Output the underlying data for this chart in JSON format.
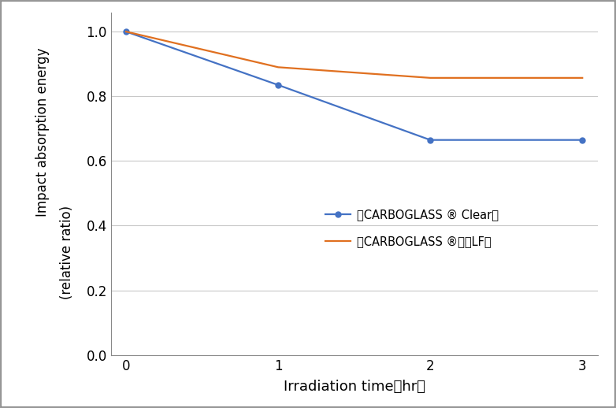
{
  "x": [
    0,
    1,
    2,
    3
  ],
  "series": [
    {
      "label": "「CARBOGLASS ® Clear」",
      "y": [
        1.0,
        0.835,
        0.665,
        0.665
      ],
      "color": "#4472C4",
      "marker": "o",
      "markersize": 5,
      "linewidth": 1.6
    },
    {
      "label": "「CARBOGLASS ®　　LF」",
      "y": [
        1.0,
        0.89,
        0.857,
        0.857
      ],
      "color": "#E07020",
      "marker": null,
      "markersize": 0,
      "linewidth": 1.6
    }
  ],
  "xlabel": "Irradiation time［hr］",
  "ylabel_top": "Impact absorption energy",
  "ylabel_bottom": "(relative ratio)",
  "xlim": [
    -0.1,
    3.1
  ],
  "ylim": [
    0,
    1.06
  ],
  "yticks": [
    0,
    0.2,
    0.4,
    0.6,
    0.8,
    1.0
  ],
  "xticks": [
    0,
    1,
    2,
    3
  ],
  "grid_color": "#C8C8C8",
  "background_color": "#FFFFFF",
  "xlabel_fontsize": 13,
  "ylabel_fontsize": 12,
  "tick_fontsize": 12,
  "legend_fontsize": 10.5
}
